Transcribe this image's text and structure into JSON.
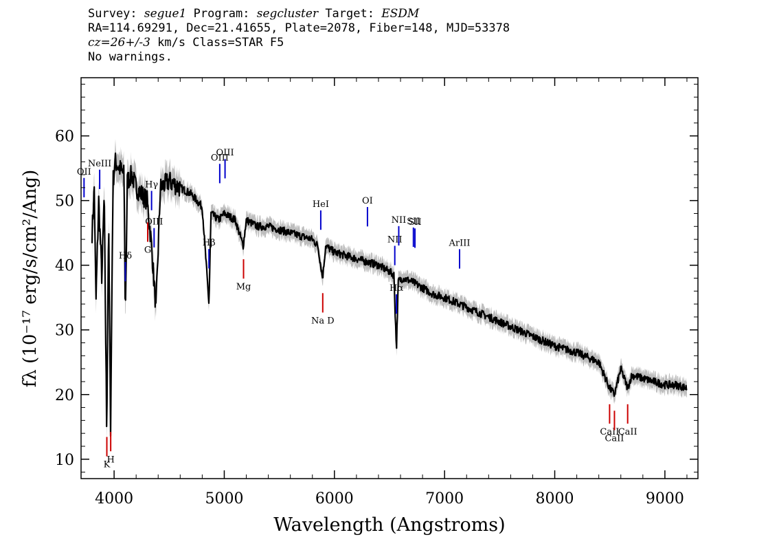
{
  "header": {
    "line1": {
      "survey_label": "Survey: ",
      "survey_value": "segue1",
      "program_label": " Program: ",
      "program_value": "segcluster",
      "target_label": " Target: ",
      "target_value": "ESDM"
    },
    "line2": "RA=114.69291, Dec=21.41655, Plate=2078, Fiber=148, MJD=53378",
    "line3": {
      "cz": "cz=26+/-3",
      "rest": " km/s Class=STAR F5"
    },
    "line4": "No warnings."
  },
  "chart_data": {
    "type": "line",
    "title": "",
    "xlabel": "Wavelength (Angstroms)",
    "ylabel": "fλ (10⁻¹⁷ erg/s/cm²/Ang)",
    "xlim": [
      3700,
      9300
    ],
    "ylim": [
      7,
      69
    ],
    "x_ticks": [
      4000,
      5000,
      6000,
      7000,
      8000,
      9000
    ],
    "y_ticks": [
      10,
      20,
      30,
      40,
      50,
      60
    ],
    "colors": {
      "flux": "#000000",
      "error_band": "#bdbdbd",
      "emission_marker": "#0000cc",
      "absorption_marker": "#cc0000"
    },
    "series": [
      {
        "role": "flux",
        "x": [
          3800,
          3820,
          3835,
          3860,
          3889,
          3910,
          3933,
          3950,
          3968,
          3990,
          4010,
          4050,
          4090,
          4102,
          4120,
          4160,
          4200,
          4250,
          4300,
          4340,
          4380,
          4420,
          4500,
          4600,
          4700,
          4800,
          4861,
          4880,
          4950,
          5000,
          5100,
          5172,
          5200,
          5300,
          5400,
          5500,
          5600,
          5700,
          5800,
          5850,
          5893,
          5920,
          6000,
          6100,
          6200,
          6300,
          6400,
          6500,
          6540,
          6563,
          6580,
          6620,
          6700,
          6800,
          6900,
          7000,
          7200,
          7400,
          7600,
          7800,
          8000,
          8200,
          8400,
          8498,
          8542,
          8600,
          8662,
          8700,
          8800,
          8900,
          9000,
          9100,
          9200
        ],
        "y": [
          45,
          52,
          34,
          50,
          38,
          51,
          14,
          47,
          15,
          53,
          56,
          55,
          54,
          32,
          53,
          54,
          52,
          51,
          50,
          43,
          33,
          52,
          53,
          52,
          51,
          49,
          34,
          48,
          47,
          48,
          47,
          43,
          47,
          46,
          46,
          45.5,
          45,
          44.5,
          44,
          43,
          38,
          43,
          42,
          41.5,
          41,
          40.5,
          40,
          39,
          38.5,
          27,
          37.5,
          38,
          37.5,
          36.5,
          35.5,
          35,
          33.5,
          32,
          30.5,
          29,
          27.5,
          26.5,
          25,
          21,
          20,
          24,
          21,
          23,
          22.5,
          22,
          21.5,
          21.5,
          21
        ]
      }
    ],
    "emission_lines": [
      {
        "label": "OII",
        "x": 3727
      },
      {
        "label": "NeIII",
        "x": 3869
      },
      {
        "label": "Hδ",
        "x": 4102
      },
      {
        "label": "Hγ",
        "x": 4340
      },
      {
        "label": "OIII",
        "x": 4363
      },
      {
        "label": "Hβ",
        "x": 4861
      },
      {
        "label": "OIII",
        "x": 4959
      },
      {
        "label": "OIII",
        "x": 5007
      },
      {
        "label": "HeI",
        "x": 5876
      },
      {
        "label": "OI",
        "x": 6300
      },
      {
        "label": "NII",
        "x": 6548
      },
      {
        "label": "Hα",
        "x": 6563
      },
      {
        "label": "NII",
        "x": 6584
      },
      {
        "label": "SII",
        "x": 6717
      },
      {
        "label": "SII",
        "x": 6731
      },
      {
        "label": "ArIII",
        "x": 7136
      }
    ],
    "absorption_lines": [
      {
        "label": "K",
        "x": 3934
      },
      {
        "label": "H",
        "x": 3969
      },
      {
        "label": "G",
        "x": 4305
      },
      {
        "label": "Mg",
        "x": 5175
      },
      {
        "label": "Na D",
        "x": 5894
      },
      {
        "label": "CaII",
        "x": 8498
      },
      {
        "label": "CaII",
        "x": 8542
      },
      {
        "label": "CaII",
        "x": 8662
      }
    ]
  }
}
